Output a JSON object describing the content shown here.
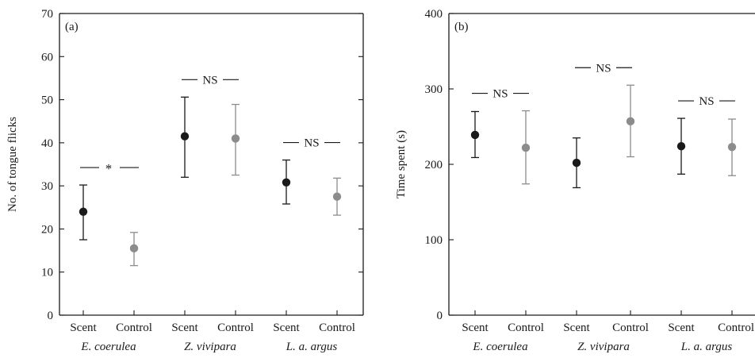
{
  "chart_data": [
    {
      "type": "scatter",
      "panel_label": "(a)",
      "ylabel": "No. of tongue flicks",
      "ylim": [
        0,
        70
      ],
      "yticks": [
        0,
        10,
        20,
        30,
        40,
        50,
        60,
        70
      ],
      "categories": [
        "Scent",
        "Control",
        "Scent",
        "Control",
        "Scent",
        "Control"
      ],
      "groups": [
        {
          "name": "E. coerulea",
          "annotation": "*"
        },
        {
          "name": "Z. vivipara",
          "annotation": "NS"
        },
        {
          "name": "L. a. argus",
          "annotation": "NS"
        }
      ],
      "points": [
        {
          "group": 0,
          "treatment": "Scent",
          "mean": 24,
          "low": 17.5,
          "high": 30.2,
          "color": "#1a1a1a"
        },
        {
          "group": 0,
          "treatment": "Control",
          "mean": 15.5,
          "low": 11.5,
          "high": 19.2,
          "color": "#8c8c8c"
        },
        {
          "group": 1,
          "treatment": "Scent",
          "mean": 41.5,
          "low": 32,
          "high": 50.6,
          "color": "#1a1a1a"
        },
        {
          "group": 1,
          "treatment": "Control",
          "mean": 41,
          "low": 32.5,
          "high": 48.9,
          "color": "#8c8c8c"
        },
        {
          "group": 2,
          "treatment": "Scent",
          "mean": 30.8,
          "low": 25.8,
          "high": 36,
          "color": "#1a1a1a"
        },
        {
          "group": 2,
          "treatment": "Control",
          "mean": 27.5,
          "low": 23.2,
          "high": 31.8,
          "color": "#8c8c8c"
        }
      ]
    },
    {
      "type": "scatter",
      "panel_label": "(b)",
      "ylabel": "Time spent (s)",
      "ylim": [
        0,
        400
      ],
      "yticks": [
        0,
        100,
        200,
        300,
        400
      ],
      "categories": [
        "Scent",
        "Control",
        "Scent",
        "Control",
        "Scent",
        "Control"
      ],
      "groups": [
        {
          "name": "E. coerulea",
          "annotation": "NS"
        },
        {
          "name": "Z. vivipara",
          "annotation": "NS"
        },
        {
          "name": "L. a. argus",
          "annotation": "NS"
        }
      ],
      "points": [
        {
          "group": 0,
          "treatment": "Scent",
          "mean": 239,
          "low": 209,
          "high": 270,
          "color": "#1a1a1a"
        },
        {
          "group": 0,
          "treatment": "Control",
          "mean": 222,
          "low": 174,
          "high": 271,
          "color": "#8c8c8c"
        },
        {
          "group": 1,
          "treatment": "Scent",
          "mean": 202,
          "low": 169,
          "high": 235,
          "color": "#1a1a1a"
        },
        {
          "group": 1,
          "treatment": "Control",
          "mean": 257,
          "low": 210,
          "high": 305,
          "color": "#8c8c8c"
        },
        {
          "group": 2,
          "treatment": "Scent",
          "mean": 224,
          "low": 187,
          "high": 261,
          "color": "#1a1a1a"
        },
        {
          "group": 2,
          "treatment": "Control",
          "mean": 223,
          "low": 185,
          "high": 260,
          "color": "#8c8c8c"
        }
      ]
    }
  ]
}
